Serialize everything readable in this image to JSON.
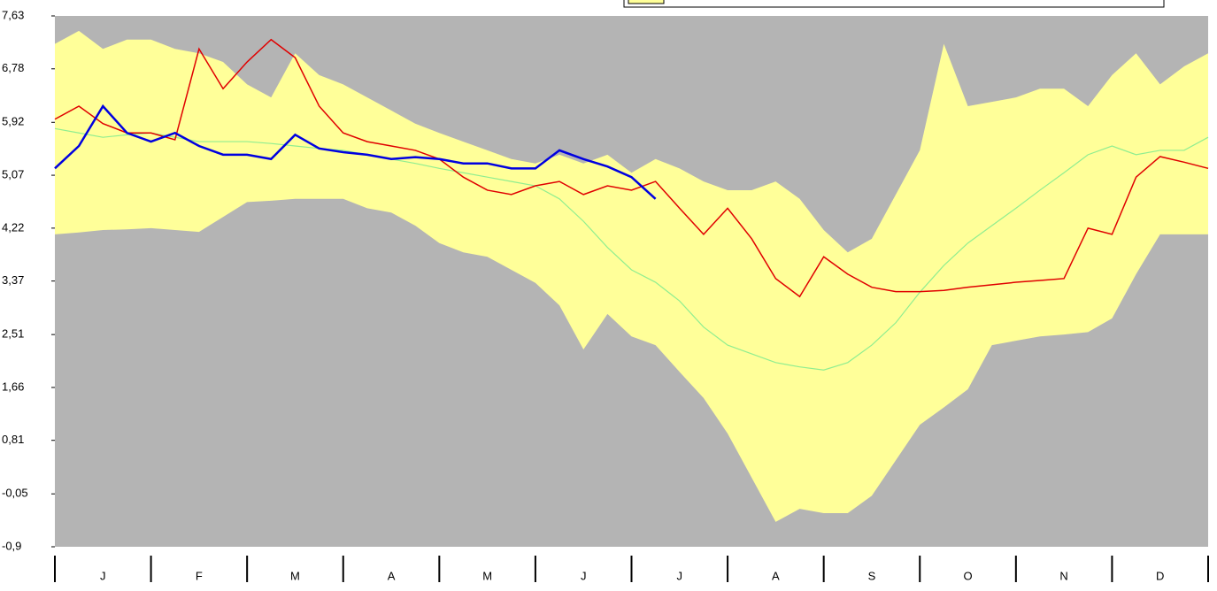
{
  "chart_data": {
    "type": "line",
    "categories": [
      "J",
      "F",
      "M",
      "A",
      "M",
      "J",
      "J",
      "A",
      "S",
      "O",
      "N",
      "D"
    ],
    "x": [
      0,
      0.25,
      0.5,
      0.75,
      1,
      1.25,
      1.5,
      1.75,
      2,
      2.25,
      2.5,
      2.75,
      3,
      3.25,
      3.5,
      3.75,
      4,
      4.25,
      4.5,
      4.75,
      5,
      5.25,
      5.5,
      5.75,
      6,
      6.25,
      6.5,
      6.75,
      7,
      7.25,
      7.5,
      7.75,
      8,
      8.25,
      8.5,
      8.75,
      9,
      9.25,
      9.5,
      9.75,
      10,
      10.25,
      10.5,
      10.75,
      11,
      11.25,
      11.5,
      11.75,
      12
    ],
    "xlim": [
      0,
      12
    ],
    "ylim": [
      -0.9,
      7.63
    ],
    "yticks": [
      {
        "value": -0.9,
        "label": "-0,9"
      },
      {
        "value": -0.05,
        "label": "-0,05"
      },
      {
        "value": 0.81,
        "label": "0,81"
      },
      {
        "value": 1.66,
        "label": "1,66"
      },
      {
        "value": 2.51,
        "label": "2,51"
      },
      {
        "value": 3.37,
        "label": "3,37"
      },
      {
        "value": 4.22,
        "label": "4,22"
      },
      {
        "value": 5.07,
        "label": "5,07"
      },
      {
        "value": 5.92,
        "label": "5,92"
      },
      {
        "value": 6.78,
        "label": "6,78"
      },
      {
        "value": 7.63,
        "label": "7,63"
      }
    ],
    "plot_background": "#b4b4b4",
    "band": {
      "color": "#ffff99",
      "upper": [
        7.18,
        7.39,
        7.1,
        7.25,
        7.25,
        7.1,
        7.03,
        6.89,
        6.53,
        6.32,
        7.03,
        6.68,
        6.53,
        6.32,
        6.11,
        5.9,
        5.75,
        5.61,
        5.47,
        5.33,
        5.26,
        5.4,
        5.26,
        5.4,
        5.11,
        5.33,
        5.18,
        4.97,
        4.83,
        4.83,
        4.97,
        4.69,
        4.19,
        3.83,
        4.05,
        4.76,
        5.47,
        7.18,
        6.18,
        6.25,
        6.32,
        6.46,
        6.46,
        6.18,
        6.68,
        7.03,
        6.53,
        6.82,
        7.03
      ],
      "lower": [
        4.12,
        4.15,
        4.19,
        4.2,
        4.22,
        4.19,
        4.16,
        4.4,
        4.64,
        4.66,
        4.69,
        4.69,
        4.69,
        4.54,
        4.47,
        4.26,
        3.98,
        3.83,
        3.76,
        3.55,
        3.34,
        2.98,
        2.27,
        2.84,
        2.48,
        2.34,
        1.91,
        1.49,
        0.92,
        0.21,
        -0.5,
        -0.29,
        -0.36,
        -0.36,
        -0.08,
        0.49,
        1.06,
        1.34,
        1.63,
        2.34,
        2.41,
        2.48,
        2.51,
        2.55,
        2.77,
        3.48,
        4.12,
        4.12,
        4.12
      ]
    },
    "series": [
      {
        "color": "#90ee90",
        "values": [
          5.82,
          5.75,
          5.68,
          5.72,
          5.75,
          5.68,
          5.61,
          5.61,
          5.61,
          5.58,
          5.54,
          5.5,
          5.47,
          5.4,
          5.33,
          5.26,
          5.18,
          5.11,
          5.04,
          4.97,
          4.9,
          4.69,
          4.33,
          3.91,
          3.55,
          3.35,
          3.05,
          2.63,
          2.34,
          2.2,
          2.06,
          1.99,
          1.94,
          2.06,
          2.34,
          2.7,
          3.19,
          3.62,
          3.98,
          4.26,
          4.54,
          4.83,
          5.11,
          5.4,
          5.54,
          5.4,
          5.47,
          5.47,
          5.68
        ]
      },
      {
        "color": "#e00000",
        "values": [
          5.97,
          6.18,
          5.9,
          5.75,
          5.75,
          5.64,
          7.1,
          6.46,
          6.89,
          7.25,
          6.96,
          6.18,
          5.75,
          5.61,
          5.54,
          5.47,
          5.33,
          5.04,
          4.83,
          4.76,
          4.9,
          4.97,
          4.76,
          4.9,
          4.83,
          4.97,
          4.54,
          4.12,
          4.54,
          4.05,
          3.41,
          3.12,
          3.76,
          3.48,
          3.27,
          3.2,
          3.2,
          3.22,
          3.27,
          3.31,
          3.35,
          3.38,
          3.41,
          4.22,
          4.12,
          5.04,
          5.37,
          5.28,
          5.18
        ]
      },
      {
        "color": "#0000e0",
        "values": [
          5.18,
          5.54,
          6.18,
          5.75,
          5.61,
          5.75,
          5.54,
          5.4,
          5.4,
          5.33,
          5.72,
          5.5,
          5.44,
          5.4,
          5.33,
          5.36,
          5.33,
          5.26,
          5.26,
          5.18,
          5.18,
          5.47,
          5.33,
          5.21,
          5.04,
          4.69,
          null,
          null,
          null,
          null,
          null,
          null,
          null,
          null,
          null,
          null,
          null,
          null,
          null,
          null,
          null,
          null,
          null,
          null,
          null,
          null,
          null,
          null,
          null
        ]
      }
    ]
  }
}
